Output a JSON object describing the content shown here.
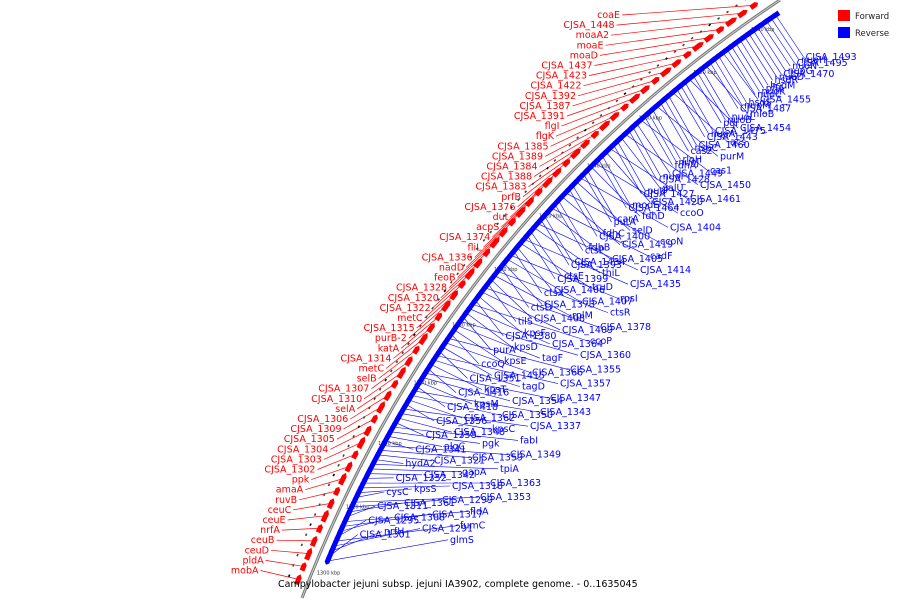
{
  "caption": "Campylobacter jejuni subsp. jejuni IA3902, complete genome. - 0..1635045",
  "legend": [
    {
      "label": "Forward",
      "color": "#ff0000"
    },
    {
      "label": "Reverse",
      "color": "#0000ff"
    }
  ],
  "colors": {
    "forward": "#ff0000",
    "reverse": "#0000ff",
    "backbone": "#777777"
  },
  "ticks": [
    "1300 kbp",
    "1320 kbp",
    "1340 kbp",
    "1360 kbp",
    "1380 kbp",
    "1400 kbp",
    "1420 kbp",
    "1440 kbp",
    "1460 kbp",
    "1480 kbp",
    "1500 kbp"
  ],
  "forward_genes": [
    "coaE",
    "CJSA_1448",
    "moaA2",
    "moaE",
    "moaD",
    "CJSA_1437",
    "CJSA_1423",
    "CJSA_1422",
    "CJSA_1392",
    "CJSA_1387",
    "CJSA_1391",
    "flgI",
    "flgK",
    "CJSA_1385",
    "CJSA_1389",
    "CJSA_1384",
    "CJSA_1388",
    "CJSA_1383",
    "prfB",
    "CJSA_1376",
    "dut",
    "acpS",
    "CJSA_1374",
    "fliL",
    "CJSA_1336",
    "nadD",
    "feoB",
    "CJSA_1328",
    "CJSA_1320",
    "CJSA_1322",
    "metC",
    "CJSA_1315",
    "purB-2",
    "katA",
    "CJSA_1314",
    "metC",
    "selB",
    "CJSA_1307",
    "CJSA_1310",
    "selA",
    "CJSA_1306",
    "CJSA_1309",
    "CJSA_1305",
    "CJSA_1304",
    "CJSA_1303",
    "CJSA_1302",
    "ppk",
    "amaA",
    "ruvB",
    "ceuC",
    "ceuE",
    "nrfA",
    "ceuB",
    "ceuD",
    "pldA",
    "mobA"
  ],
  "reverse_genes": [
    "CJSA_1493",
    "nuoH",
    "CJSA_1495",
    "nuoN",
    "nuoG",
    "CJSA_1470",
    "nuoD",
    "hsdR",
    "hsdM",
    "pflA",
    "nuoK",
    "nuoC",
    "CJSA_1455",
    "hsdS",
    "nuoM",
    "CJSA_1487",
    "mloB",
    "nuoL",
    "nuoB",
    "pgi",
    "CJSA_1454",
    "CJSA_1475",
    "nuoA",
    "CJSA_1443",
    "acs",
    "CJSA_1460",
    "nspC",
    "cas2",
    "purM",
    "rloH",
    "nuoJ",
    "fdhA",
    "cas1",
    "CJSA_1449",
    "nuoI",
    "CJSA_1428",
    "CJSA_1450",
    "galU",
    "putP",
    "CJSA_1427",
    "CJSA_1461",
    "CJSA_1420",
    "modE",
    "CJSA_1464",
    "ccoO",
    "fdhD",
    "carA",
    "putA",
    "CJSA_1404",
    "selD",
    "fdhC",
    "CJSA_1400",
    "ccoN",
    "CJSA_1419",
    "fdhB",
    "ctsP",
    "cadF",
    "CJSA_1405",
    "CJSA_1434",
    "CJSA_1393",
    "CJSA_1414",
    "thiL",
    "ctsE",
    "CJSA_1399",
    "CJSA_1435",
    "truD",
    "CJSA_1406",
    "ctsX",
    "rpsI",
    "CJSA_1407",
    "CJSA_1373",
    "ctsD",
    "ctsR",
    "rplM",
    "CJSA_1408",
    "tilS",
    "CJSA_1378",
    "CJSA_1409",
    "kpsF",
    "CJSA_1380",
    "ccoP",
    "CJSA_1364",
    "kpsD",
    "purA",
    "CJSA_1360",
    "tagF",
    "kpsE",
    "ccoQ",
    "CJSA_1355",
    "CJSA_1366",
    "CJSA_1415",
    "CJSA_1351",
    "CJSA_1357",
    "tagD",
    "kpsT",
    "CJSA_1416",
    "CJSA_1347",
    "CJSA_1354",
    "kpsM",
    "CJSA_1418",
    "CJSA_1343",
    "CJSA_1350",
    "CJSA_1362",
    "CJSA_1356",
    "CJSA_1337",
    "kpsC",
    "CJSA_1348",
    "CJSA_1358",
    "fabI",
    "pgk",
    "algC",
    "CJSA_1341",
    "CJSA_1349",
    "CJSA_1359",
    "CJSA_1321",
    "hydA2",
    "tpiA",
    "gapA",
    "CJSA_1342",
    "CJSA_1352",
    "CJSA_1363",
    "CJSA_1318",
    "kpsS",
    "cysC",
    "CJSA_1353",
    "CJSA_1299",
    "CJSA_1361",
    "CJSA_1311",
    "fldA",
    "CJSA_1317",
    "CJSA_1308",
    "CJSA_1295",
    "fumC",
    "CJSA_1291",
    "nrfH",
    "CJSA_1301",
    "glmS"
  ]
}
